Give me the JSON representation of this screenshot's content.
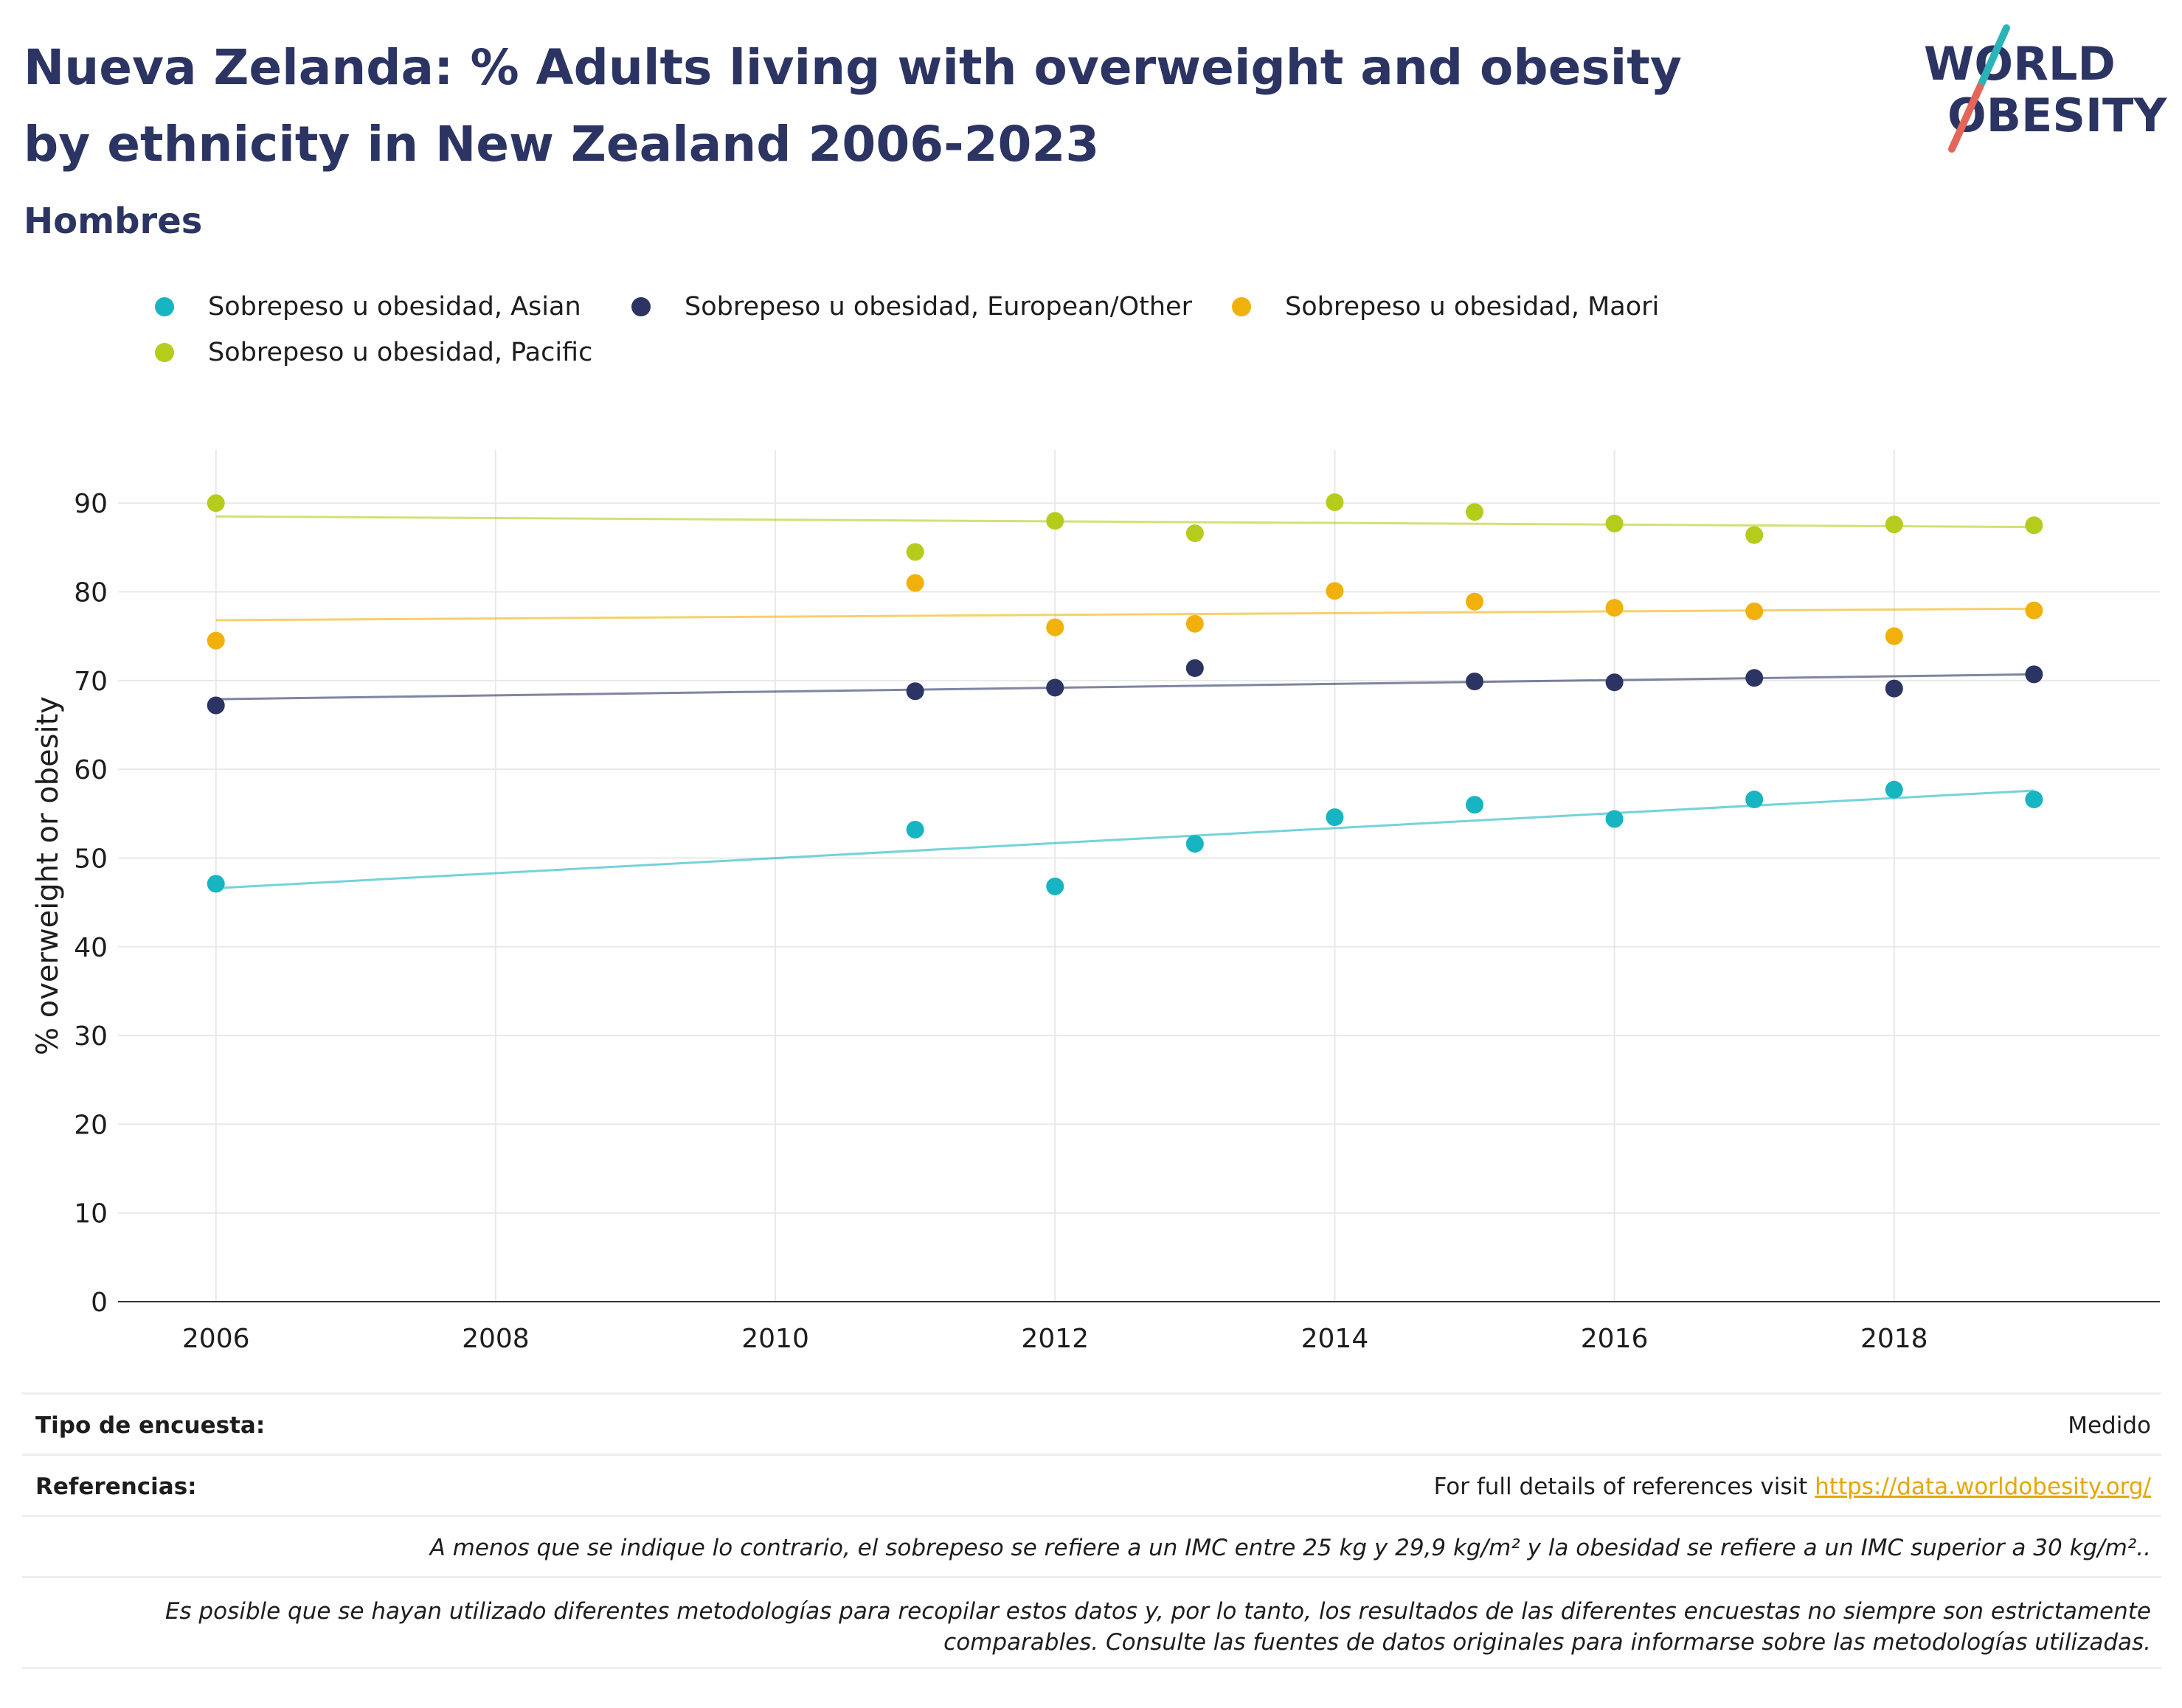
{
  "header": {
    "title": "Nueva Zelanda: % Adults living with overweight and obesity by ethnicity in New Zealand 2006-2023",
    "subtitle": "Hombres"
  },
  "logo": {
    "line1": "WORLD",
    "line2": "OBESITY",
    "colors": {
      "text": "#2b3462",
      "slash_top": "#2bb3b8",
      "slash_bottom": "#e2675a"
    }
  },
  "chart_data": {
    "type": "scatter",
    "ylabel": "% overweight or obesity",
    "xlabel": "",
    "xlim": [
      2005.3,
      2019.9
    ],
    "ylim": [
      0,
      96
    ],
    "xticks": [
      2006,
      2008,
      2010,
      2012,
      2014,
      2016,
      2018
    ],
    "yticks": [
      0,
      10,
      20,
      30,
      40,
      50,
      60,
      70,
      80,
      90
    ],
    "grid": true,
    "legend_position": "top-left",
    "series": [
      {
        "name": "Sobrepeso u obesidad, Asian",
        "color": "#17b5c1",
        "x": [
          2006,
          2011,
          2012,
          2013,
          2014,
          2015,
          2016,
          2017,
          2018,
          2019
        ],
        "y": [
          47.1,
          53.2,
          46.8,
          51.6,
          54.6,
          56.0,
          54.4,
          56.6,
          57.7,
          56.6
        ],
        "trend": [
          [
            2006,
            46.6
          ],
          [
            2019,
            57.6
          ]
        ]
      },
      {
        "name": "Sobrepeso u obesidad, European/Other",
        "color": "#2b3462",
        "x": [
          2006,
          2011,
          2012,
          2013,
          2015,
          2016,
          2017,
          2018,
          2019
        ],
        "y": [
          67.2,
          68.8,
          69.2,
          71.4,
          69.9,
          69.8,
          70.3,
          69.1,
          70.7
        ],
        "trend": [
          [
            2006,
            67.9
          ],
          [
            2019,
            70.7
          ]
        ]
      },
      {
        "name": "Sobrepeso u obesidad, Maori",
        "color": "#f2b10a",
        "x": [
          2006,
          2011,
          2012,
          2013,
          2014,
          2015,
          2016,
          2017,
          2018,
          2019
        ],
        "y": [
          74.5,
          81.0,
          76.0,
          76.4,
          80.1,
          78.9,
          78.2,
          77.8,
          75.0,
          77.9
        ],
        "trend": [
          [
            2006,
            76.8
          ],
          [
            2019,
            78.1
          ]
        ]
      },
      {
        "name": "Sobrepeso u obesidad, Pacific",
        "color": "#b6cc1c",
        "x": [
          2006,
          2011,
          2012,
          2013,
          2014,
          2015,
          2016,
          2017,
          2018,
          2019
        ],
        "y": [
          90.0,
          84.5,
          88.0,
          86.6,
          90.1,
          89.0,
          87.7,
          86.4,
          87.6,
          87.5
        ],
        "trend": [
          [
            2006,
            88.5
          ],
          [
            2019,
            87.3
          ]
        ]
      }
    ]
  },
  "footer": {
    "survey_type_label": "Tipo de encuesta:",
    "survey_type_value": "Medido",
    "references_label": "Referencias:",
    "references_text": "For full details of references visit",
    "references_link": "https://data.worldobesity.org/",
    "note_bmi": "A menos que se indique lo contrario, el sobrepeso se refiere a un IMC entre 25 kg y 29,9 kg/m² y la obesidad se refiere a un IMC superior a 30 kg/m²..",
    "note_methods": "Es posible que se hayan utilizado diferentes metodologías para recopilar estos datos y, por lo tanto, los resultados de las diferentes encuestas no siempre son estrictamente comparables. Consulte las fuentes de datos originales para informarse sobre las metodologías utilizadas."
  }
}
